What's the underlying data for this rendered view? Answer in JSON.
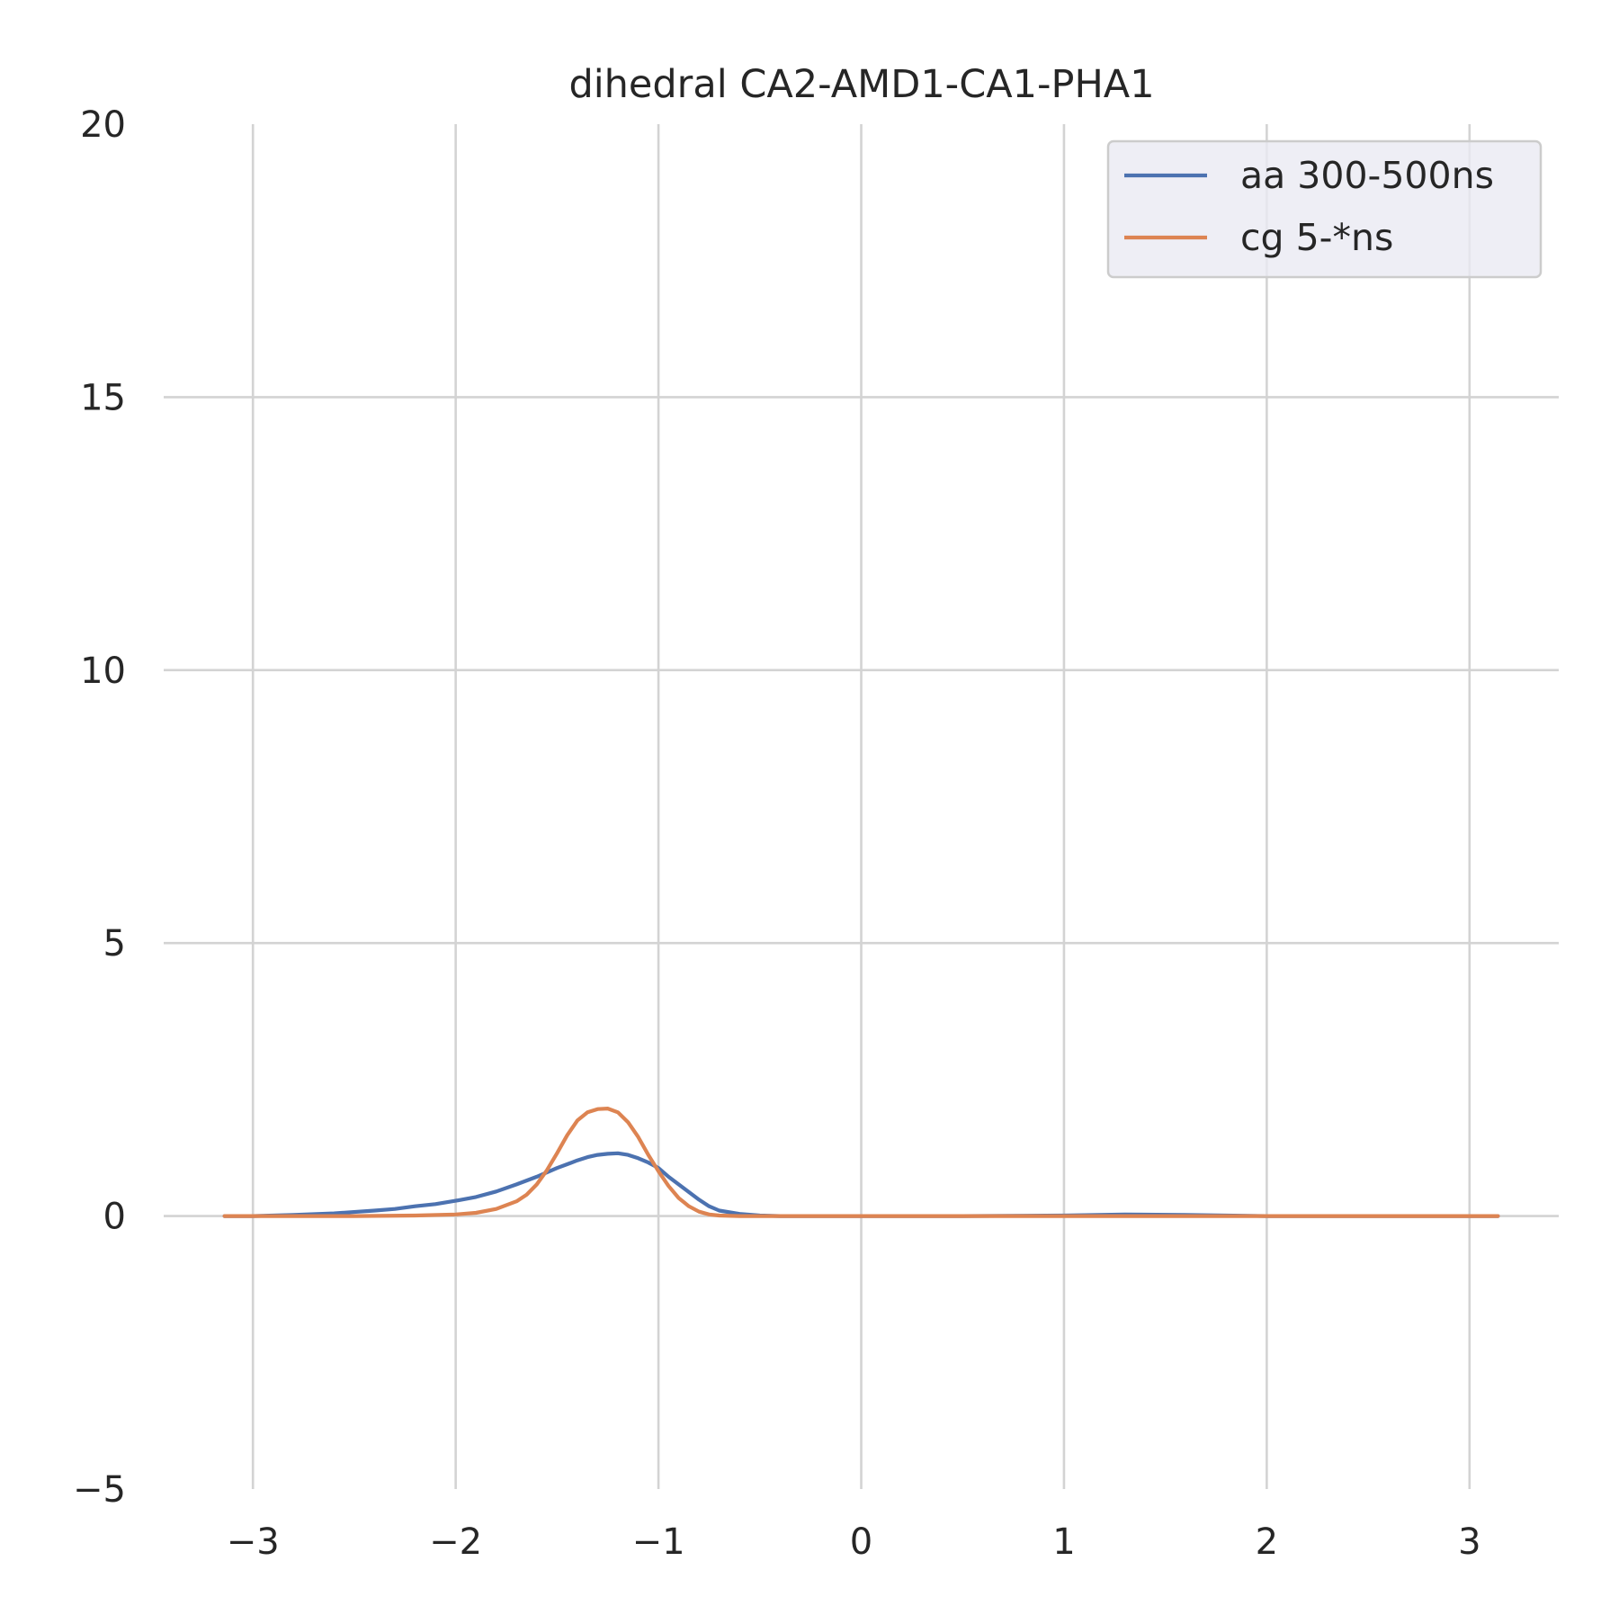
{
  "chart_data": {
    "type": "line",
    "title": "dihedral CA2-AMD1-CA1-PHA1",
    "xlabel": "",
    "ylabel": "",
    "xlim": [
      -3.44,
      3.44
    ],
    "ylim": [
      -5,
      20
    ],
    "xticks": [
      -3,
      -2,
      -1,
      0,
      1,
      2,
      3
    ],
    "xtick_labels": [
      "−3",
      "−2",
      "−1",
      "0",
      "1",
      "2",
      "3"
    ],
    "yticks": [
      -5,
      0,
      5,
      10,
      15,
      20
    ],
    "ytick_labels": [
      "−5",
      "0",
      "5",
      "10",
      "15",
      "20"
    ],
    "grid": true,
    "legend_position": "top-right",
    "series": [
      {
        "name": "aa 300-500ns",
        "color": "#4c72b0",
        "x": [
          -3.14,
          -3.0,
          -2.8,
          -2.6,
          -2.4,
          -2.3,
          -2.2,
          -2.1,
          -2.0,
          -1.9,
          -1.8,
          -1.7,
          -1.6,
          -1.5,
          -1.45,
          -1.4,
          -1.35,
          -1.3,
          -1.25,
          -1.2,
          -1.15,
          -1.1,
          -1.05,
          -1.0,
          -0.95,
          -0.9,
          -0.85,
          -0.8,
          -0.75,
          -0.7,
          -0.6,
          -0.5,
          -0.4,
          -0.2,
          0.0,
          0.5,
          1.0,
          1.3,
          1.6,
          2.0,
          2.5,
          3.14
        ],
        "y": [
          0.0,
          0.0,
          0.02,
          0.05,
          0.1,
          0.13,
          0.18,
          0.22,
          0.28,
          0.35,
          0.45,
          0.58,
          0.72,
          0.88,
          0.95,
          1.02,
          1.08,
          1.12,
          1.14,
          1.15,
          1.12,
          1.06,
          0.98,
          0.88,
          0.72,
          0.58,
          0.44,
          0.3,
          0.18,
          0.1,
          0.04,
          0.01,
          0.0,
          0.0,
          0.0,
          0.0,
          0.01,
          0.03,
          0.02,
          0.0,
          0.0,
          0.0
        ]
      },
      {
        "name": "cg 5-*ns",
        "color": "#dd8452",
        "x": [
          -3.14,
          -2.5,
          -2.2,
          -2.0,
          -1.9,
          -1.8,
          -1.7,
          -1.65,
          -1.6,
          -1.55,
          -1.5,
          -1.45,
          -1.4,
          -1.35,
          -1.3,
          -1.25,
          -1.2,
          -1.15,
          -1.1,
          -1.05,
          -1.0,
          -0.95,
          -0.9,
          -0.85,
          -0.8,
          -0.75,
          -0.7,
          -0.6,
          -0.5,
          0.0,
          1.0,
          2.0,
          3.14
        ],
        "y": [
          0.0,
          0.0,
          0.01,
          0.03,
          0.06,
          0.13,
          0.27,
          0.39,
          0.58,
          0.84,
          1.15,
          1.48,
          1.75,
          1.9,
          1.96,
          1.97,
          1.9,
          1.72,
          1.45,
          1.12,
          0.82,
          0.55,
          0.33,
          0.18,
          0.08,
          0.03,
          0.01,
          0.0,
          0.0,
          0.0,
          0.0,
          0.0,
          0.0
        ]
      }
    ]
  }
}
